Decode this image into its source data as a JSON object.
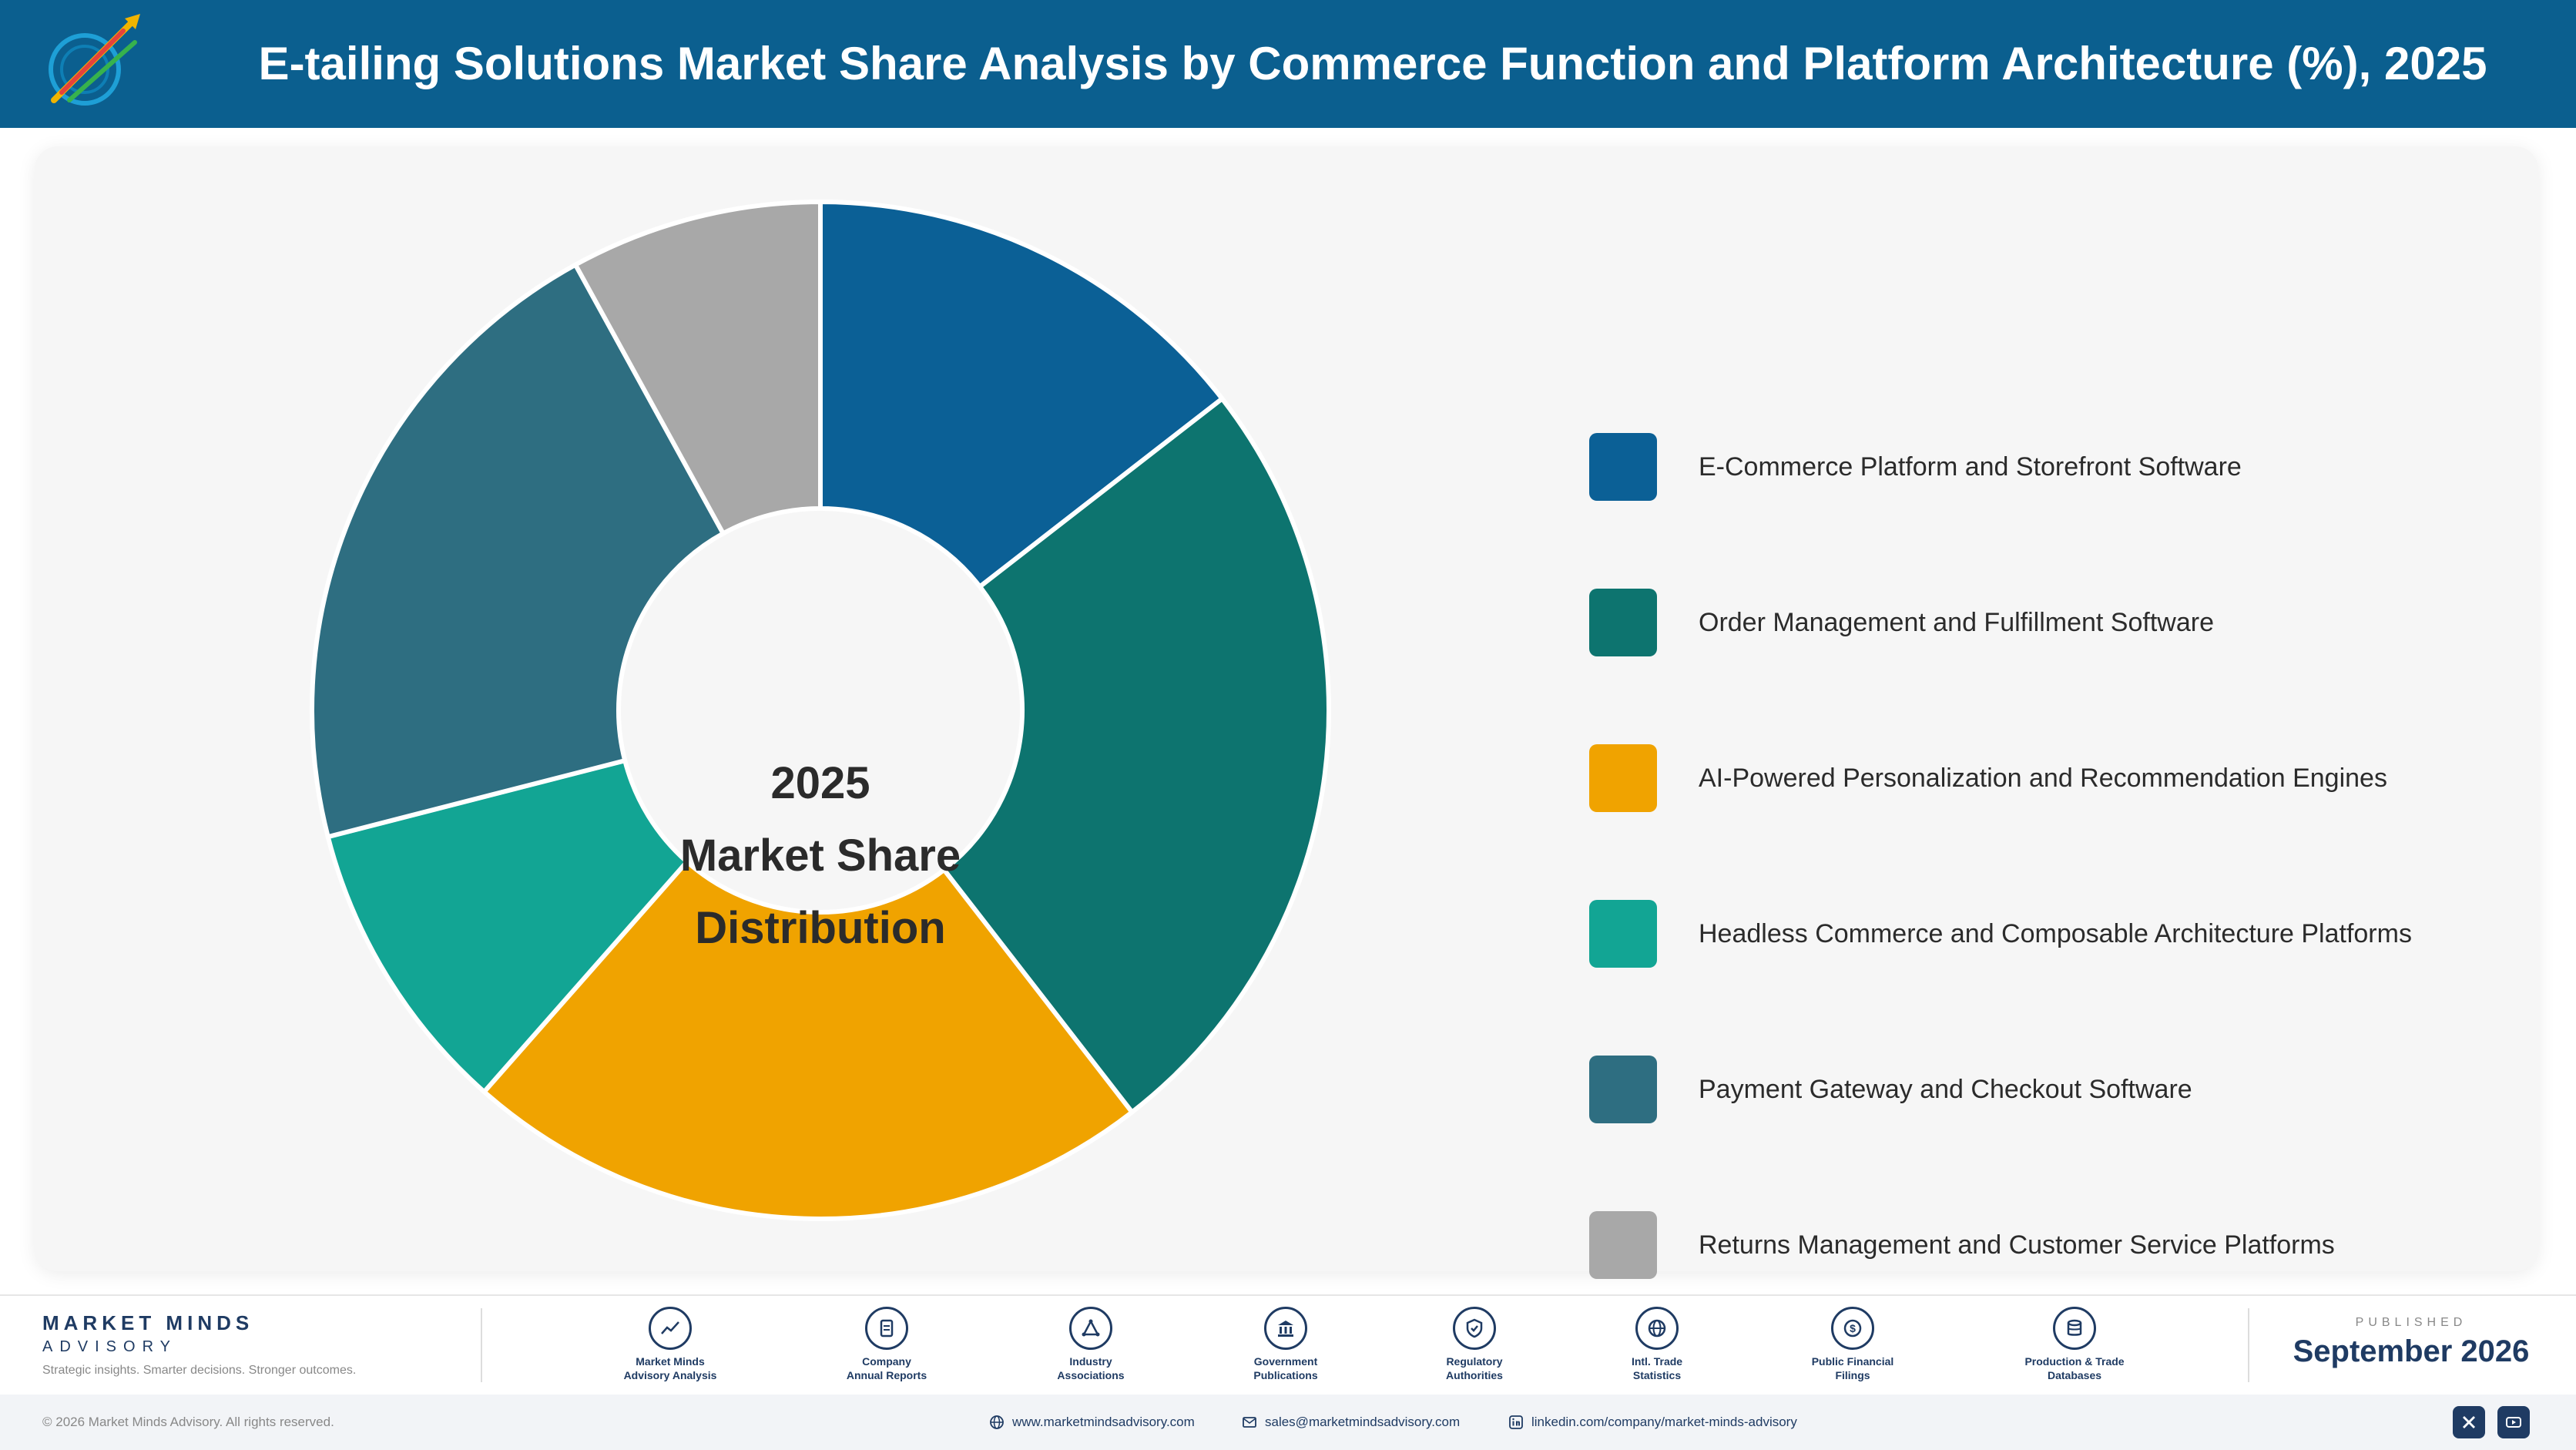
{
  "header": {
    "title": "E-tailing Solutions Market Share Analysis by Commerce Function and Platform Architecture (%), 2025",
    "logo_icon": "company-logo-icon"
  },
  "chart_data": {
    "type": "pie",
    "title": "",
    "center_label": [
      "2025",
      "Market Share",
      "Distribution"
    ],
    "categories": [
      "E-Commerce Platform and Storefront Software",
      "Order Management and Fulfillment Software",
      "AI-Powered Personalization and Recommendation Engines",
      "Headless Commerce and Composable Architecture Platforms",
      "Payment Gateway and Checkout Software",
      "Returns Management and Customer Service Platforms"
    ],
    "values": [
      14.5,
      25.0,
      22.0,
      9.5,
      21.0,
      8.0
    ],
    "colors": [
      "#0b6096",
      "#0d746f",
      "#f0a300",
      "#12a594",
      "#2e6e81",
      "#a8a8a8"
    ],
    "legend_position": "right"
  },
  "footer": {
    "brand_name": "MARKET MINDS",
    "brand_sub": "ADVISORY",
    "tagline": "Strategic insights. Smarter decisions. Stronger outcomes.",
    "sources": [
      {
        "line1": "Market Minds",
        "line2": "Advisory Analysis",
        "icon": "trend-chart-icon"
      },
      {
        "line1": "Company",
        "line2": "Annual Reports",
        "icon": "document-icon"
      },
      {
        "line1": "Industry",
        "line2": "Associations",
        "icon": "network-icon"
      },
      {
        "line1": "Government",
        "line2": "Publications",
        "icon": "government-building-icon"
      },
      {
        "line1": "Regulatory",
        "line2": "Authorities",
        "icon": "shield-check-icon"
      },
      {
        "line1": "Intl. Trade",
        "line2": "Statistics",
        "icon": "globe-icon"
      },
      {
        "line1": "Public Financial",
        "line2": "Filings",
        "icon": "dollar-coin-icon"
      },
      {
        "line1": "Production & Trade",
        "line2": "Databases",
        "icon": "database-icon"
      }
    ],
    "published_label": "PUBLISHED",
    "published_date": "September 2026",
    "copyright": "© 2026 Market Minds Advisory. All rights reserved.",
    "website": "www.marketmindsadvisory.com",
    "email": "sales@marketmindsadvisory.com",
    "linkedin": "linkedin.com/company/market-minds-advisory"
  }
}
